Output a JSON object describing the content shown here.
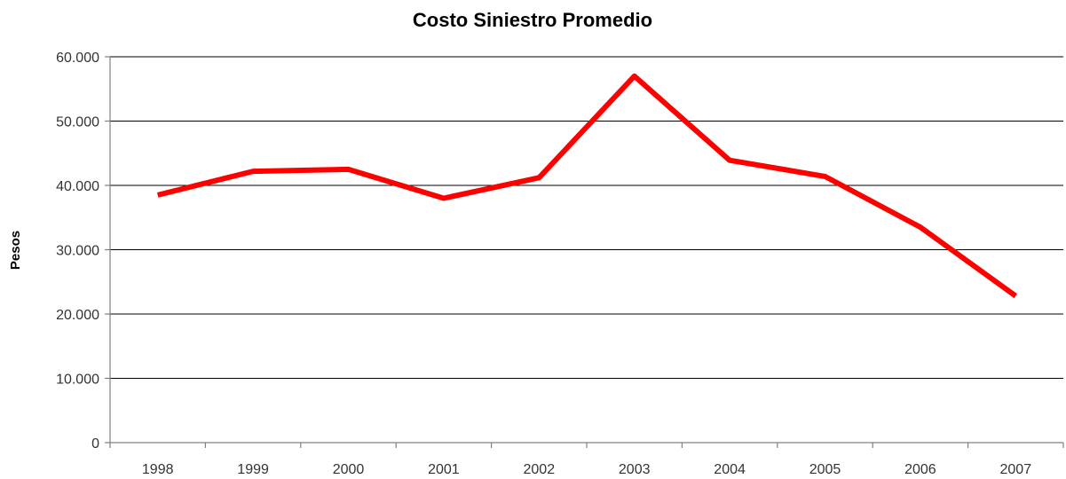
{
  "chart_data": {
    "type": "line",
    "title": "Costo Siniestro Promedio",
    "xlabel": "",
    "ylabel": "Pesos",
    "categories": [
      "1998",
      "1999",
      "2000",
      "2001",
      "2002",
      "2003",
      "2004",
      "2005",
      "2006",
      "2007"
    ],
    "series": [
      {
        "values": [
          38500,
          42200,
          42500,
          38000,
          41200,
          57000,
          43900,
          41400,
          33500,
          22800
        ],
        "color": "#ff0000"
      }
    ],
    "ylim": [
      0,
      60000
    ],
    "yticks": [
      0,
      10000,
      20000,
      30000,
      40000,
      50000,
      60000
    ],
    "ytick_labels": [
      "0",
      "10.000",
      "20.000",
      "30.000",
      "40.000",
      "50.000",
      "60.000"
    ],
    "grid": true,
    "legend": "none"
  }
}
